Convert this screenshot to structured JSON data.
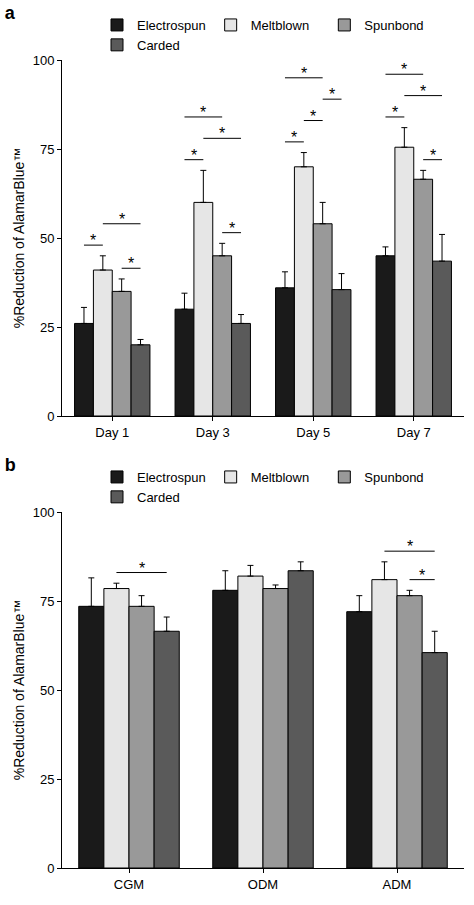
{
  "chart_data": [
    {
      "type": "bar",
      "title": "a",
      "categories": [
        "Day 1",
        "Day 3",
        "Day 5",
        "Day 7"
      ],
      "ylabel": "%Reduction of AlamarBlue™",
      "ylim": [
        0,
        100
      ],
      "yticks": [
        0,
        25,
        50,
        75,
        100
      ],
      "legend": "top",
      "series": [
        {
          "name": "Electrospun",
          "color": "#1a1a1a",
          "values": [
            26,
            30,
            36,
            45
          ],
          "errors": [
            4.5,
            4.5,
            4.5,
            2.5
          ]
        },
        {
          "name": "Meltblown",
          "color": "#e6e6e6",
          "values": [
            41,
            60,
            70,
            75.5
          ],
          "errors": [
            4,
            9,
            4,
            5.5
          ]
        },
        {
          "name": "Spunbond",
          "color": "#999999",
          "values": [
            35,
            45,
            54,
            66.5
          ],
          "errors": [
            3.5,
            3.5,
            6,
            2.5
          ]
        },
        {
          "name": "Carded",
          "color": "#5a5a5a",
          "values": [
            20,
            26,
            35.5,
            43.5
          ],
          "errors": [
            1.5,
            2.5,
            4.5,
            7.5
          ]
        }
      ],
      "comparisons": [
        {
          "category": "Day 1",
          "between": [
            "Electrospun",
            "Meltblown"
          ],
          "label": "*"
        },
        {
          "category": "Day 1",
          "between": [
            "Spunbond",
            "Carded"
          ],
          "label": "*"
        },
        {
          "category": "Day 1",
          "between": [
            "Meltblown",
            "Carded"
          ],
          "label": "*"
        },
        {
          "category": "Day 3",
          "between": [
            "Electrospun",
            "Meltblown"
          ],
          "label": "*"
        },
        {
          "category": "Day 3",
          "between": [
            "Spunbond",
            "Carded"
          ],
          "label": "*"
        },
        {
          "category": "Day 3",
          "between": [
            "Meltblown",
            "Carded"
          ],
          "label": "*"
        },
        {
          "category": "Day 3",
          "between": [
            "Electrospun",
            "Spunbond"
          ],
          "label": "*"
        },
        {
          "category": "Day 5",
          "between": [
            "Electrospun",
            "Meltblown"
          ],
          "label": "*"
        },
        {
          "category": "Day 5",
          "between": [
            "Meltblown",
            "Spunbond"
          ],
          "label": "*"
        },
        {
          "category": "Day 5",
          "between": [
            "Spunbond",
            "Carded"
          ],
          "label": "*"
        },
        {
          "category": "Day 5",
          "between": [
            "Electrospun",
            "Spunbond"
          ],
          "label": "*"
        },
        {
          "category": "Day 7",
          "between": [
            "Electrospun",
            "Meltblown"
          ],
          "label": "*"
        },
        {
          "category": "Day 7",
          "between": [
            "Spunbond",
            "Carded"
          ],
          "label": "*"
        },
        {
          "category": "Day 7",
          "between": [
            "Meltblown",
            "Carded"
          ],
          "label": "*"
        },
        {
          "category": "Day 7",
          "between": [
            "Electrospun",
            "Spunbond"
          ],
          "label": "*"
        }
      ]
    },
    {
      "type": "bar",
      "title": "b",
      "categories": [
        "CGM",
        "ODM",
        "ADM"
      ],
      "ylabel": "%Reduction of AlamarBlue™",
      "ylim": [
        0,
        100
      ],
      "yticks": [
        0,
        25,
        50,
        75,
        100
      ],
      "legend": "top",
      "series": [
        {
          "name": "Electrospun",
          "color": "#1a1a1a",
          "values": [
            73.5,
            78,
            72
          ],
          "errors": [
            8,
            5.5,
            4.5
          ]
        },
        {
          "name": "Meltblown",
          "color": "#e6e6e6",
          "values": [
            78.5,
            82,
            81
          ],
          "errors": [
            1.5,
            3,
            5
          ]
        },
        {
          "name": "Spunbond",
          "color": "#999999",
          "values": [
            73.5,
            78.5,
            76.5
          ],
          "errors": [
            3,
            1,
            1.5
          ]
        },
        {
          "name": "Carded",
          "color": "#5a5a5a",
          "values": [
            66.5,
            83.5,
            60.5
          ],
          "errors": [
            4,
            2.5,
            6
          ]
        }
      ],
      "comparisons": [
        {
          "category": "CGM",
          "between": [
            "Meltblown",
            "Carded"
          ],
          "label": "*"
        },
        {
          "category": "ADM",
          "between": [
            "Spunbond",
            "Carded"
          ],
          "label": "*"
        },
        {
          "category": "ADM",
          "between": [
            "Meltblown",
            "Carded"
          ],
          "label": "*"
        }
      ]
    }
  ]
}
